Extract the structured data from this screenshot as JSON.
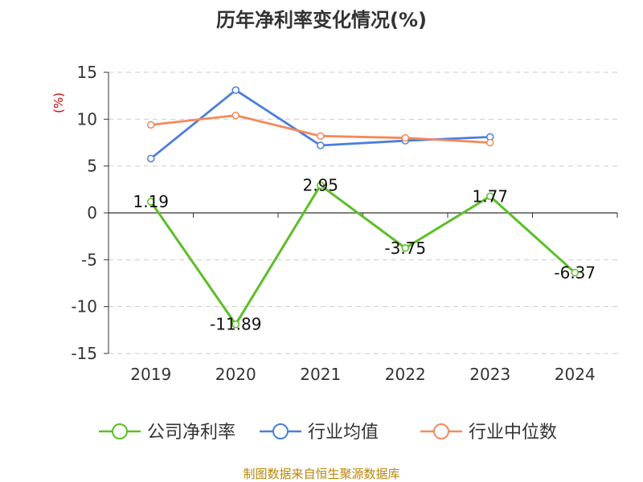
{
  "chart_data": {
    "type": "line",
    "title": "历年净利率变化情况(%)",
    "ylabel": "(%)",
    "xlabel": "",
    "categories": [
      "2019",
      "2020",
      "2021",
      "2022",
      "2023",
      "2024"
    ],
    "ylim": [
      -15,
      15
    ],
    "yticks": [
      15,
      10,
      5,
      0,
      -5,
      -10,
      -15
    ],
    "grid": true,
    "legend_position": "bottom",
    "series": [
      {
        "name": "公司净利率",
        "color": "#5cbf27",
        "values": [
          1.19,
          -11.89,
          2.95,
          -3.75,
          1.77,
          -6.37
        ],
        "labels": [
          "1.19",
          "-11.89",
          "2.95",
          "-3.75",
          "1.77",
          "-6.37"
        ]
      },
      {
        "name": "行业均值",
        "color": "#4a7fdc",
        "values": [
          5.8,
          13.1,
          7.2,
          7.7,
          8.1,
          null
        ]
      },
      {
        "name": "行业中位数",
        "color": "#f5895a",
        "values": [
          9.4,
          10.4,
          8.2,
          8.0,
          7.5,
          null
        ]
      }
    ],
    "source": "制图数据来自恒生聚源数据库"
  }
}
